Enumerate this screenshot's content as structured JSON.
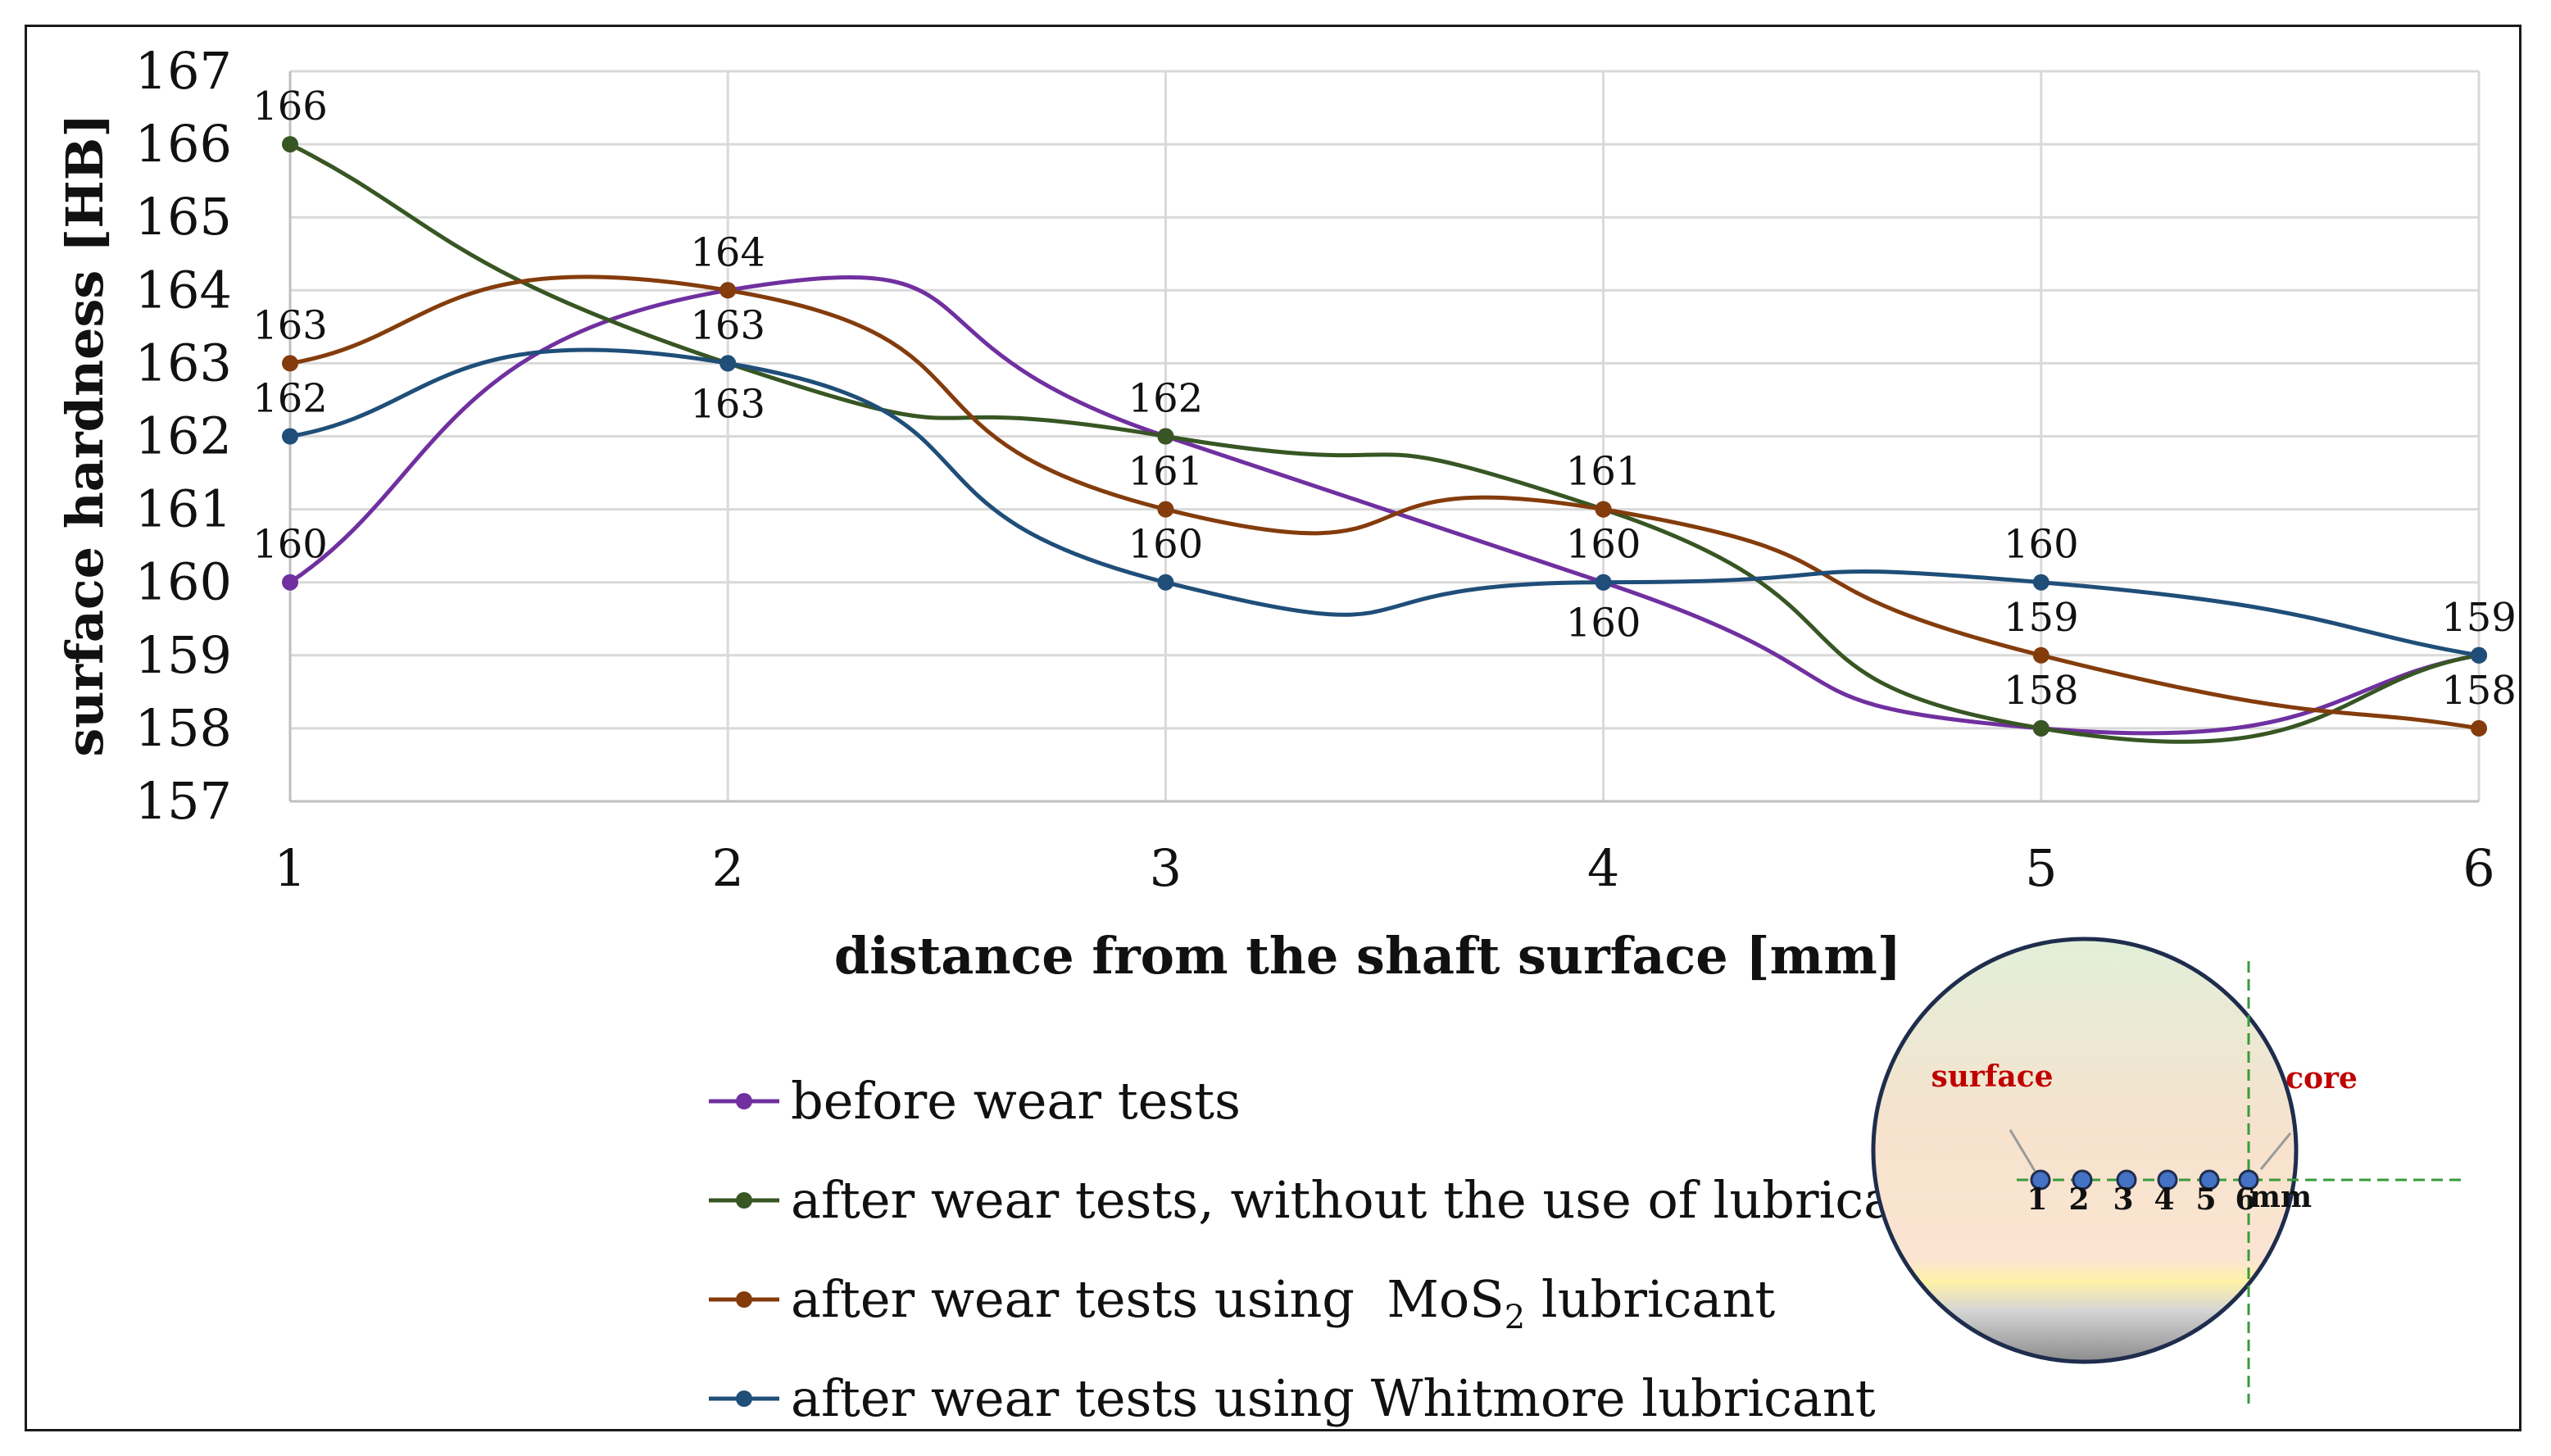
{
  "chart_data": {
    "type": "line",
    "smooth": true,
    "x": [
      1,
      2,
      3,
      4,
      5,
      6
    ],
    "xlabel": "distance from the shaft surface [mm]",
    "ylabel": "surface hardness [HB]",
    "ylim": [
      157,
      167
    ],
    "yticks": [
      157,
      158,
      159,
      160,
      161,
      162,
      163,
      164,
      165,
      166,
      167
    ],
    "xticks": [
      1,
      2,
      3,
      4,
      5,
      6
    ],
    "grid": true,
    "series": [
      {
        "name": "before wear tests",
        "color": "#7030a0",
        "values": [
          160,
          164,
          162,
          160,
          158,
          159
        ]
      },
      {
        "name": "after wear tests, without the use of lubricant",
        "color": "#375623",
        "values": [
          166,
          163,
          162,
          161,
          158,
          159
        ]
      },
      {
        "name_prefix": "after wear tests using ",
        "name_chem": "MoS",
        "name_sub": "2",
        "name_suffix": " lubricant",
        "color": "#843c0c",
        "values": [
          163,
          164,
          161,
          161,
          159,
          158
        ]
      },
      {
        "name": "after wear tests using Whitmore lubricant",
        "color": "#1f4e79",
        "values": [
          162,
          163,
          160,
          160,
          160,
          159
        ]
      }
    ],
    "data_labels": [
      {
        "x": 1,
        "text": "166",
        "pos": "above"
      },
      {
        "x": 1,
        "text": "163",
        "pos": "above"
      },
      {
        "x": 1,
        "text": "162",
        "pos": "above"
      },
      {
        "x": 1,
        "text": "160",
        "pos": "above"
      },
      {
        "x": 2,
        "text": "164",
        "pos": "above"
      },
      {
        "x": 2,
        "text": "163",
        "pos": "above"
      },
      {
        "x": 2,
        "text": "163",
        "pos": "below"
      },
      {
        "x": 3,
        "text": "162",
        "pos": "above"
      },
      {
        "x": 3,
        "text": "161",
        "pos": "above"
      },
      {
        "x": 3,
        "text": "160",
        "pos": "above"
      },
      {
        "x": 4,
        "text": "161",
        "pos": "above"
      },
      {
        "x": 4,
        "text": "160",
        "pos": "above"
      },
      {
        "x": 4,
        "text": "160",
        "pos": "below"
      },
      {
        "x": 5,
        "text": "160",
        "pos": "above"
      },
      {
        "x": 5,
        "text": "159",
        "pos": "above"
      },
      {
        "x": 5,
        "text": "158",
        "pos": "above"
      },
      {
        "x": 6,
        "text": "159",
        "pos": "above"
      },
      {
        "x": 6,
        "text": "158",
        "pos": "above"
      }
    ]
  },
  "inset": {
    "surface_label": "surface",
    "core_label": "core",
    "point_labels": [
      "1",
      "2",
      "3",
      "4",
      "5",
      "6"
    ],
    "unit": "mm",
    "label_color": "#c00000",
    "dot_color": "#4472c4",
    "guide_color": "#3a9a3a"
  }
}
